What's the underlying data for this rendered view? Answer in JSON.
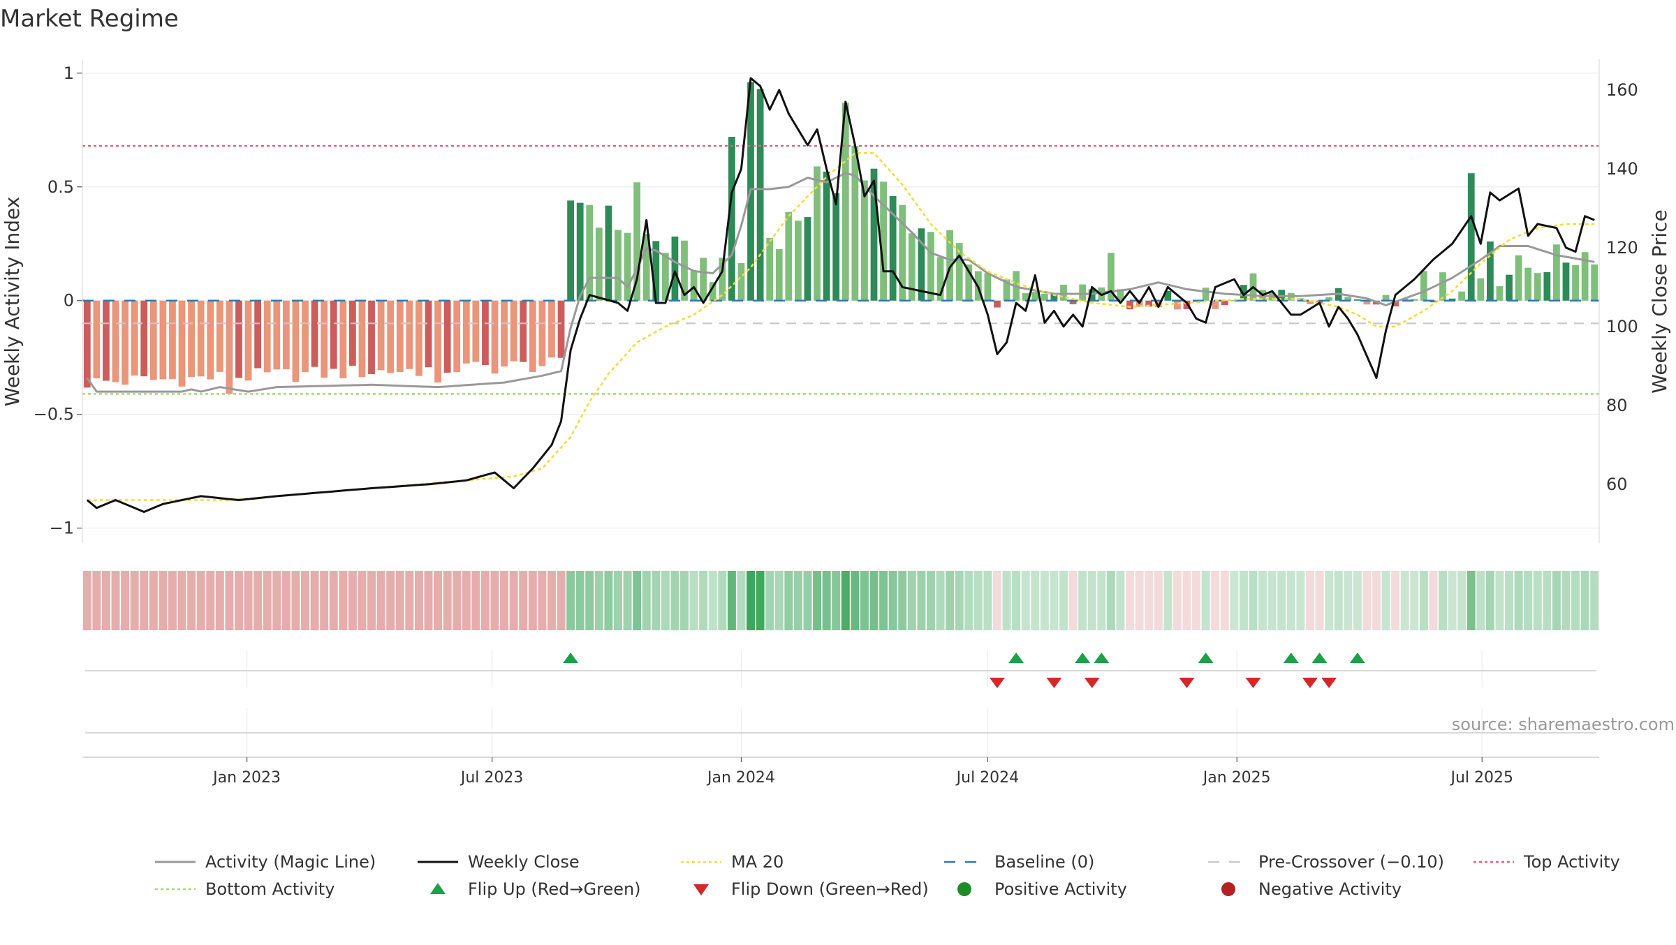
{
  "title": "Market Regime",
  "source_note": "source: sharemaestro.com",
  "colors": {
    "magic_line": "#999999",
    "weekly_close": "#111111",
    "ma20": "#f3dc3c",
    "baseline": "#2a7ab0",
    "pre_crossover": "#c8c8c8",
    "top_activity": "#e0607a",
    "bottom_activity": "#a6d96a",
    "pos_strong": "#2e8b57",
    "pos_light": "#7fbf7b",
    "neg_strong": "#cd5c5c",
    "neg_light": "#e9967a",
    "flip_up": "#1ea04a",
    "flip_down": "#d62728",
    "positive_dot": "#1f8b24",
    "negative_dot": "#b22222"
  },
  "chart_data": {
    "type": "bar",
    "start_date": "2022-09-05",
    "frequency": "weekly",
    "n_weeks": 160,
    "y_left": {
      "label": "Weekly Activity Index",
      "ylim": [
        -1.05,
        1.03
      ],
      "ticks": [
        1,
        0.5,
        0,
        -0.5,
        -1
      ],
      "tick_labels": [
        "1",
        "0.5",
        "0",
        "−0.5",
        "−1"
      ]
    },
    "y_right": {
      "label": "Weekly Close Price",
      "ylim": [
        46,
        166
      ],
      "ticks": [
        160,
        140,
        120,
        100,
        80,
        60
      ],
      "tick_labels": [
        "160",
        "140",
        "120",
        "100",
        "80",
        "60"
      ]
    },
    "x_ticks": [
      {
        "date": "2023-01-01",
        "label": "Jan 2023"
      },
      {
        "date": "2023-07-01",
        "label": "Jul 2023"
      },
      {
        "date": "2024-01-01",
        "label": "Jan 2024"
      },
      {
        "date": "2024-07-01",
        "label": "Jul 2024"
      },
      {
        "date": "2025-01-01",
        "label": "Jan 2025"
      },
      {
        "date": "2025-07-01",
        "label": "Jul 2025"
      }
    ],
    "reference_lines": {
      "baseline": 0,
      "pre_crossover": -0.1,
      "top_activity": 0.68,
      "bottom_activity": -0.41
    },
    "activity_key": [
      {
        "from": 0,
        "to": 51,
        "start": -0.36,
        "end": -0.28,
        "amp": 0.07
      },
      {
        "from": 51,
        "to": 68,
        "start": 0.44,
        "end": 0.12,
        "amp": 0.14
      },
      {
        "from": 68,
        "to": 82,
        "start": 0.15,
        "end": 0.58,
        "amp": 0.18
      },
      {
        "from": 82,
        "to": 95,
        "start": 0.55,
        "end": 0.1,
        "amp": 0.18
      },
      {
        "from": 95,
        "to": 102,
        "start": 0.1,
        "end": 0.02,
        "amp": 0.06
      },
      {
        "from": 102,
        "to": 140,
        "start": 0.04,
        "end": 0.02,
        "amp": 0.08
      },
      {
        "from": 140,
        "to": 160,
        "start": 0.03,
        "end": 0.22,
        "amp": 0.14
      }
    ],
    "activity_overrides": {
      "15": -0.41,
      "37": -0.36,
      "51": 0.44,
      "52": 0.43,
      "53": 0.42,
      "58": 0.52,
      "68": 0.72,
      "70": 0.96,
      "71": 0.93,
      "77": 0.59,
      "80": 0.87,
      "81": 0.68,
      "83": 0.58,
      "91": 0.31,
      "96": -0.03,
      "98": 0.13,
      "108": 0.21,
      "123": 0.12,
      "141": 0.13,
      "146": 0.56,
      "148": 0.26
    },
    "close_key": [
      {
        "w": 0,
        "v": 56
      },
      {
        "w": 1,
        "v": 54
      },
      {
        "w": 3,
        "v": 56
      },
      {
        "w": 6,
        "v": 53
      },
      {
        "w": 8,
        "v": 55
      },
      {
        "w": 12,
        "v": 57
      },
      {
        "w": 16,
        "v": 56
      },
      {
        "w": 20,
        "v": 57
      },
      {
        "w": 25,
        "v": 58
      },
      {
        "w": 30,
        "v": 59
      },
      {
        "w": 36,
        "v": 60
      },
      {
        "w": 40,
        "v": 61
      },
      {
        "w": 43,
        "v": 63
      },
      {
        "w": 45,
        "v": 59
      },
      {
        "w": 47,
        "v": 64
      },
      {
        "w": 49,
        "v": 70
      },
      {
        "w": 50,
        "v": 76
      },
      {
        "w": 51,
        "v": 94
      },
      {
        "w": 52,
        "v": 102
      },
      {
        "w": 53,
        "v": 108
      },
      {
        "w": 56,
        "v": 106
      },
      {
        "w": 57,
        "v": 104
      },
      {
        "w": 58,
        "v": 112
      },
      {
        "w": 59,
        "v": 127
      },
      {
        "w": 60,
        "v": 106
      },
      {
        "w": 61,
        "v": 106
      },
      {
        "w": 62,
        "v": 114
      },
      {
        "w": 63,
        "v": 108
      },
      {
        "w": 64,
        "v": 110
      },
      {
        "w": 65,
        "v": 106
      },
      {
        "w": 67,
        "v": 114
      },
      {
        "w": 68,
        "v": 134
      },
      {
        "w": 69,
        "v": 140
      },
      {
        "w": 70,
        "v": 163
      },
      {
        "w": 71,
        "v": 161
      },
      {
        "w": 72,
        "v": 155
      },
      {
        "w": 73,
        "v": 160
      },
      {
        "w": 74,
        "v": 154
      },
      {
        "w": 75,
        "v": 150
      },
      {
        "w": 76,
        "v": 146
      },
      {
        "w": 77,
        "v": 150
      },
      {
        "w": 78,
        "v": 140
      },
      {
        "w": 79,
        "v": 131
      },
      {
        "w": 80,
        "v": 157
      },
      {
        "w": 81,
        "v": 146
      },
      {
        "w": 82,
        "v": 133
      },
      {
        "w": 83,
        "v": 137
      },
      {
        "w": 84,
        "v": 114
      },
      {
        "w": 85,
        "v": 114
      },
      {
        "w": 86,
        "v": 110
      },
      {
        "w": 88,
        "v": 109
      },
      {
        "w": 90,
        "v": 108
      },
      {
        "w": 91,
        "v": 115
      },
      {
        "w": 92,
        "v": 118
      },
      {
        "w": 93,
        "v": 114
      },
      {
        "w": 94,
        "v": 110
      },
      {
        "w": 95,
        "v": 103
      },
      {
        "w": 96,
        "v": 93
      },
      {
        "w": 97,
        "v": 96
      },
      {
        "w": 98,
        "v": 106
      },
      {
        "w": 99,
        "v": 104
      },
      {
        "w": 100,
        "v": 113
      },
      {
        "w": 101,
        "v": 101
      },
      {
        "w": 102,
        "v": 104
      },
      {
        "w": 103,
        "v": 100
      },
      {
        "w": 104,
        "v": 103
      },
      {
        "w": 105,
        "v": 100
      },
      {
        "w": 106,
        "v": 110
      },
      {
        "w": 107,
        "v": 108
      },
      {
        "w": 108,
        "v": 109
      },
      {
        "w": 109,
        "v": 106
      },
      {
        "w": 110,
        "v": 109
      },
      {
        "w": 111,
        "v": 106
      },
      {
        "w": 112,
        "v": 110
      },
      {
        "w": 113,
        "v": 105
      },
      {
        "w": 114,
        "v": 110
      },
      {
        "w": 115,
        "v": 108
      },
      {
        "w": 116,
        "v": 106
      },
      {
        "w": 117,
        "v": 102
      },
      {
        "w": 118,
        "v": 101
      },
      {
        "w": 119,
        "v": 110
      },
      {
        "w": 121,
        "v": 112
      },
      {
        "w": 122,
        "v": 108
      },
      {
        "w": 123,
        "v": 110
      },
      {
        "w": 124,
        "v": 108
      },
      {
        "w": 125,
        "v": 109
      },
      {
        "w": 127,
        "v": 103
      },
      {
        "w": 128,
        "v": 103
      },
      {
        "w": 130,
        "v": 106
      },
      {
        "w": 131,
        "v": 100
      },
      {
        "w": 132,
        "v": 105
      },
      {
        "w": 133,
        "v": 102
      },
      {
        "w": 134,
        "v": 98
      },
      {
        "w": 136,
        "v": 87
      },
      {
        "w": 137,
        "v": 99
      },
      {
        "w": 138,
        "v": 108
      },
      {
        "w": 140,
        "v": 112
      },
      {
        "w": 142,
        "v": 117
      },
      {
        "w": 144,
        "v": 121
      },
      {
        "w": 146,
        "v": 128
      },
      {
        "w": 147,
        "v": 121
      },
      {
        "w": 148,
        "v": 134
      },
      {
        "w": 149,
        "v": 132
      },
      {
        "w": 151,
        "v": 135
      },
      {
        "w": 152,
        "v": 123
      },
      {
        "w": 153,
        "v": 126
      },
      {
        "w": 155,
        "v": 125
      },
      {
        "w": 156,
        "v": 120
      },
      {
        "w": 157,
        "v": 119
      },
      {
        "w": 158,
        "v": 128
      },
      {
        "w": 159,
        "v": 127
      }
    ],
    "ma20_key": [
      {
        "w": 0,
        "v": 56
      },
      {
        "w": 15,
        "v": 56
      },
      {
        "w": 30,
        "v": 59
      },
      {
        "w": 45,
        "v": 62
      },
      {
        "w": 48,
        "v": 64
      },
      {
        "w": 51,
        "v": 72
      },
      {
        "w": 53,
        "v": 81
      },
      {
        "w": 55,
        "v": 88
      },
      {
        "w": 58,
        "v": 96
      },
      {
        "w": 61,
        "v": 100
      },
      {
        "w": 64,
        "v": 103
      },
      {
        "w": 67,
        "v": 108
      },
      {
        "w": 70,
        "v": 115
      },
      {
        "w": 74,
        "v": 128
      },
      {
        "w": 78,
        "v": 138
      },
      {
        "w": 81,
        "v": 144
      },
      {
        "w": 83,
        "v": 144
      },
      {
        "w": 86,
        "v": 136
      },
      {
        "w": 89,
        "v": 126
      },
      {
        "w": 92,
        "v": 119
      },
      {
        "w": 95,
        "v": 114
      },
      {
        "w": 98,
        "v": 111
      },
      {
        "w": 102,
        "v": 108
      },
      {
        "w": 106,
        "v": 106
      },
      {
        "w": 110,
        "v": 105
      },
      {
        "w": 116,
        "v": 106
      },
      {
        "w": 122,
        "v": 107
      },
      {
        "w": 128,
        "v": 107
      },
      {
        "w": 132,
        "v": 105
      },
      {
        "w": 134,
        "v": 103
      },
      {
        "w": 136,
        "v": 100
      },
      {
        "w": 138,
        "v": 100
      },
      {
        "w": 141,
        "v": 104
      },
      {
        "w": 144,
        "v": 109
      },
      {
        "w": 147,
        "v": 116
      },
      {
        "w": 150,
        "v": 122
      },
      {
        "w": 153,
        "v": 125
      },
      {
        "w": 156,
        "v": 126
      },
      {
        "w": 159,
        "v": 126
      }
    ],
    "magic_key": [
      {
        "w": 0,
        "v": -0.34
      },
      {
        "w": 1,
        "v": -0.4
      },
      {
        "w": 10,
        "v": -0.4
      },
      {
        "w": 11,
        "v": -0.39
      },
      {
        "w": 12,
        "v": -0.4
      },
      {
        "w": 14,
        "v": -0.38
      },
      {
        "w": 17,
        "v": -0.4
      },
      {
        "w": 20,
        "v": -0.38
      },
      {
        "w": 30,
        "v": -0.37
      },
      {
        "w": 37,
        "v": -0.38
      },
      {
        "w": 44,
        "v": -0.36
      },
      {
        "w": 48,
        "v": -0.33
      },
      {
        "w": 50,
        "v": -0.31
      },
      {
        "w": 51,
        "v": -0.12
      },
      {
        "w": 52,
        "v": 0.02
      },
      {
        "w": 53,
        "v": 0.1
      },
      {
        "w": 56,
        "v": 0.1
      },
      {
        "w": 57,
        "v": 0.06
      },
      {
        "w": 58,
        "v": 0.14
      },
      {
        "w": 59,
        "v": 0.23
      },
      {
        "w": 60,
        "v": 0.22
      },
      {
        "w": 62,
        "v": 0.17
      },
      {
        "w": 64,
        "v": 0.13
      },
      {
        "w": 66,
        "v": 0.12
      },
      {
        "w": 68,
        "v": 0.2
      },
      {
        "w": 69,
        "v": 0.33
      },
      {
        "w": 70,
        "v": 0.49
      },
      {
        "w": 72,
        "v": 0.49
      },
      {
        "w": 74,
        "v": 0.5
      },
      {
        "w": 76,
        "v": 0.54
      },
      {
        "w": 78,
        "v": 0.52
      },
      {
        "w": 80,
        "v": 0.56
      },
      {
        "w": 81,
        "v": 0.55
      },
      {
        "w": 83,
        "v": 0.46
      },
      {
        "w": 85,
        "v": 0.38
      },
      {
        "w": 87,
        "v": 0.3
      },
      {
        "w": 89,
        "v": 0.21
      },
      {
        "w": 91,
        "v": 0.18
      },
      {
        "w": 93,
        "v": 0.18
      },
      {
        "w": 95,
        "v": 0.12
      },
      {
        "w": 98,
        "v": 0.06
      },
      {
        "w": 102,
        "v": 0.03
      },
      {
        "w": 106,
        "v": 0.03
      },
      {
        "w": 110,
        "v": 0.05
      },
      {
        "w": 113,
        "v": 0.08
      },
      {
        "w": 116,
        "v": 0.05
      },
      {
        "w": 120,
        "v": 0.03
      },
      {
        "w": 124,
        "v": 0.02
      },
      {
        "w": 128,
        "v": 0.02
      },
      {
        "w": 132,
        "v": 0.03
      },
      {
        "w": 135,
        "v": 0.01
      },
      {
        "w": 137,
        "v": -0.02
      },
      {
        "w": 139,
        "v": 0.01
      },
      {
        "w": 141,
        "v": 0.04
      },
      {
        "w": 144,
        "v": 0.1
      },
      {
        "w": 147,
        "v": 0.18
      },
      {
        "w": 149,
        "v": 0.24
      },
      {
        "w": 152,
        "v": 0.24
      },
      {
        "w": 155,
        "v": 0.2
      },
      {
        "w": 159,
        "v": 0.17
      }
    ],
    "flip_up_weeks": [
      51,
      98,
      105,
      107,
      118,
      127,
      130,
      134
    ],
    "flip_down_weeks": [
      96,
      102,
      106,
      116,
      123,
      129,
      131
    ],
    "legend": [
      {
        "label": "Activity (Magic Line)",
        "kind": "line",
        "color_key": "magic_line"
      },
      {
        "label": "Weekly Close",
        "kind": "line",
        "color_key": "weekly_close"
      },
      {
        "label": "MA 20",
        "kind": "dotted",
        "color_key": "ma20"
      },
      {
        "label": "Baseline (0)",
        "kind": "dashed",
        "color_key": "baseline"
      },
      {
        "label": "Pre-Crossover (−0.10)",
        "kind": "dashed",
        "color_key": "pre_crossover"
      },
      {
        "label": "Top Activity",
        "kind": "dotted",
        "color_key": "top_activity"
      },
      {
        "label": "Bottom Activity",
        "kind": "dotted",
        "color_key": "bottom_activity"
      },
      {
        "label": "Flip Up (Red→Green)",
        "kind": "triangle-up",
        "color_key": "flip_up"
      },
      {
        "label": "Flip Down (Green→Red)",
        "kind": "triangle-down",
        "color_key": "flip_down"
      },
      {
        "label": "Positive Activity",
        "kind": "dot",
        "color_key": "positive_dot"
      },
      {
        "label": "Negative Activity",
        "kind": "dot",
        "color_key": "negative_dot"
      }
    ]
  }
}
